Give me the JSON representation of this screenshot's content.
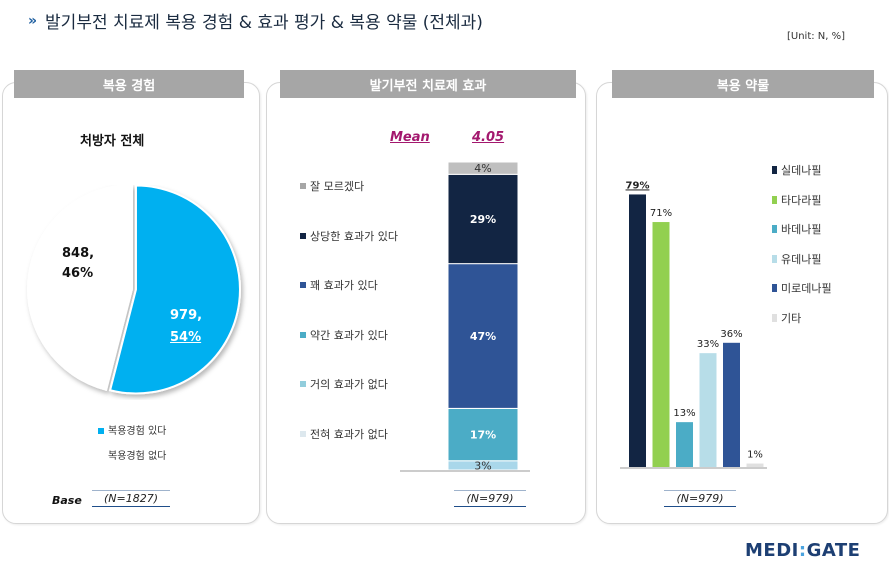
{
  "header": {
    "title": "발기부전 치료제 복용 경험 & 효과 평가 & 복용 약물 (전체과)",
    "unit": "[Unit: N, %]"
  },
  "panels": {
    "experience": {
      "tab": "복용 경험",
      "subtitle": "처방자 전체",
      "base_label": "Base",
      "n_label": "(N=1827)"
    },
    "effect": {
      "tab": "발기부전 치료제 효과",
      "mean_label": "Mean",
      "mean_value": "4.05",
      "n_label": "(N=979)"
    },
    "drugs": {
      "tab": "복용 약물",
      "n_label": "(N=979)"
    }
  },
  "chart_data": [
    {
      "type": "pie",
      "title": "처방자 전체",
      "slices": [
        {
          "label": "복용경험 있다",
          "count": "979,",
          "percent": "54%",
          "value": 54,
          "color": "#00b0f0"
        },
        {
          "label": "복용경험 없다",
          "count": "848,",
          "percent": "46%",
          "value": 46,
          "color": "#ffffff"
        }
      ]
    },
    {
      "type": "bar",
      "stacked": true,
      "segments_bottom_to_top": [
        {
          "name": "전혀 효과가 없다",
          "value": 3,
          "label": "3%",
          "color": "#a9d7ea"
        },
        {
          "name": "약간 효과가 있다",
          "value": 17,
          "label": "17%",
          "color": "#4bacc6"
        },
        {
          "name": "꽤 효과가 있다",
          "value": 47,
          "label": "47%",
          "color": "#2f5496"
        },
        {
          "name": "상당한 효과가 있다",
          "value": 29,
          "label": "29%",
          "color": "#122543"
        },
        {
          "name": "잘 모르겠다",
          "value": 4,
          "label": "4%",
          "color": "#bfbfbf"
        }
      ],
      "legend": [
        {
          "name": "잘 모르겠다",
          "color": "#a6a6a6"
        },
        {
          "name": "상당한 효과가 있다",
          "color": "#122543"
        },
        {
          "name": "꽤 효과가 있다",
          "color": "#2f5496"
        },
        {
          "name": "약간 효과가 있다",
          "color": "#4bacc6"
        },
        {
          "name": "거의 효과가 없다",
          "color": "#92cddc"
        },
        {
          "name": "전혀 효과가 없다",
          "color": "#dde8ee"
        }
      ]
    },
    {
      "type": "bar",
      "categories": [
        "실데나필",
        "타다라필",
        "바데나필",
        "유데나필",
        "미로데나필",
        "기타"
      ],
      "values": [
        79,
        71,
        13,
        33,
        36,
        1
      ],
      "labels": [
        "79%",
        "71%",
        "13%",
        "33%",
        "36%",
        "1%"
      ],
      "colors": [
        "#122543",
        "#92d050",
        "#4bacc6",
        "#b7dde8",
        "#2f5496",
        "#e0e0e0"
      ],
      "ylim": [
        0,
        100
      ],
      "legend_position": "right"
    }
  ],
  "logo": {
    "part1": "MEDI",
    "colon": ":",
    "part2": "GATE"
  }
}
